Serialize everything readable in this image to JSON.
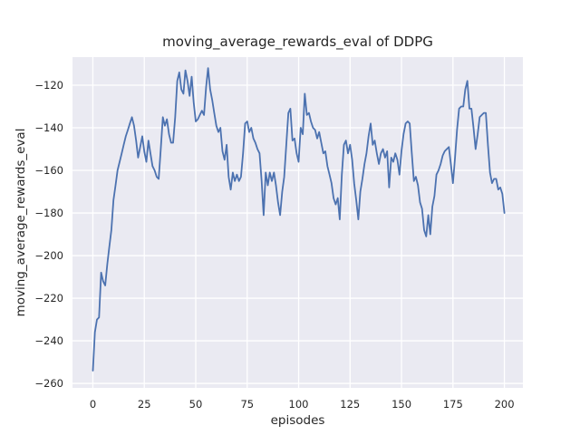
{
  "figure": {
    "background_color": "#ffffff",
    "axes_background_color": "#eaeaf2",
    "grid_color": "#ffffff",
    "text_color": "#262626"
  },
  "chart_data": {
    "type": "line",
    "title": "moving_average_rewards_eval of DDPG",
    "xlabel": "episodes",
    "ylabel": "moving_average_rewards_eval",
    "line_color": "#4c72b0",
    "legend": null,
    "grid": true,
    "xlim": [
      -9.9,
      209.0
    ],
    "ylim": [
      -262.1,
      -106.8
    ],
    "xticks": {
      "values": [
        0,
        25,
        50,
        75,
        100,
        125,
        150,
        175,
        200
      ],
      "labels": [
        "0",
        "25",
        "50",
        "75",
        "100",
        "125",
        "150",
        "175",
        "200"
      ]
    },
    "yticks": {
      "values": [
        -120,
        -140,
        -160,
        -180,
        -200,
        -220,
        -240,
        -260
      ],
      "labels": [
        "−120",
        "−140",
        "−160",
        "−180",
        "−200",
        "−220",
        "−240",
        "−260"
      ]
    },
    "x_start": 0,
    "x_step": 1,
    "x_end": 200,
    "values": [
      -254,
      -236,
      -230,
      -229,
      -208,
      -212,
      -214,
      -204,
      -196,
      -188,
      -174,
      -167,
      -160,
      -156,
      -152,
      -148,
      -144,
      -141,
      -138,
      -135,
      -139,
      -146,
      -154,
      -149,
      -144,
      -151,
      -156,
      -146,
      -152,
      -158,
      -160,
      -163,
      -164,
      -150,
      -135,
      -139,
      -136,
      -143,
      -147,
      -147,
      -135,
      -118,
      -114,
      -122,
      -124,
      -113,
      -118,
      -125,
      -116,
      -128,
      -137,
      -136,
      -134,
      -132,
      -134,
      -121,
      -112,
      -122,
      -127,
      -133,
      -139,
      -142,
      -140,
      -151,
      -155,
      -148,
      -163,
      -169,
      -161,
      -165,
      -162,
      -165,
      -163,
      -152,
      -138,
      -137,
      -142,
      -140,
      -145,
      -147,
      -150,
      -152,
      -165,
      -181,
      -161,
      -167,
      -161,
      -165,
      -161,
      -167,
      -175,
      -181,
      -170,
      -163,
      -148,
      -133,
      -131,
      -146,
      -145,
      -152,
      -156,
      -140,
      -143,
      -124,
      -134,
      -133,
      -137,
      -140,
      -141,
      -145,
      -142,
      -147,
      -152,
      -151,
      -158,
      -162,
      -166,
      -173,
      -176,
      -173,
      -183,
      -162,
      -148,
      -146,
      -152,
      -148,
      -155,
      -166,
      -174,
      -183,
      -170,
      -164,
      -157,
      -152,
      -144,
      -138,
      -148,
      -146,
      -152,
      -157,
      -152,
      -150,
      -154,
      -151,
      -168,
      -154,
      -156,
      -152,
      -155,
      -162,
      -151,
      -143,
      -138,
      -137,
      -138,
      -152,
      -165,
      -163,
      -167,
      -175,
      -178,
      -188,
      -191,
      -181,
      -190,
      -177,
      -172,
      -162,
      -160,
      -157,
      -153,
      -151,
      -150,
      -149,
      -157,
      -166,
      -154,
      -141,
      -131,
      -130,
      -130,
      -122,
      -118,
      -131,
      -131,
      -140,
      -150,
      -143,
      -135,
      -134,
      -133,
      -133,
      -148,
      -161,
      -166,
      -164,
      -164,
      -169,
      -168,
      -171,
      -180
    ]
  }
}
